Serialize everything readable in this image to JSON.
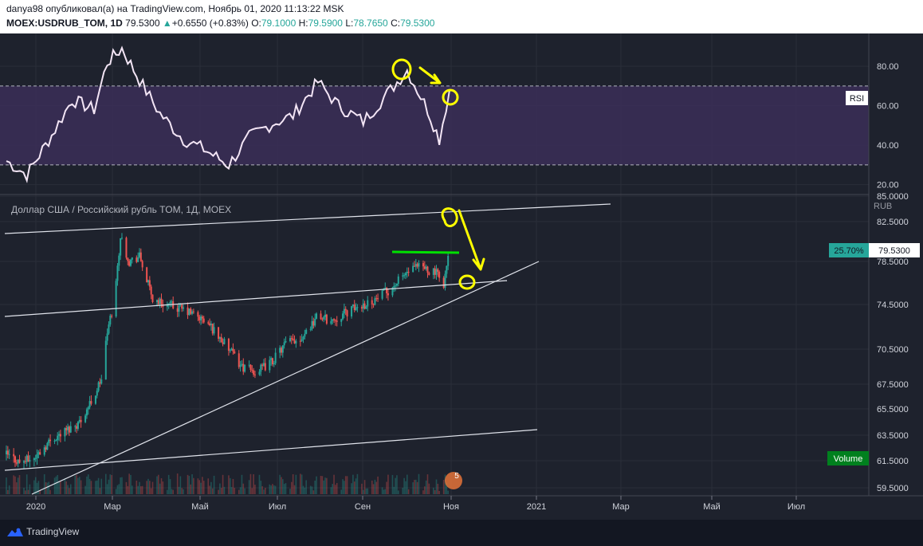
{
  "header": {
    "line1": "danya98 опубликовал(а) на TradingView.com, Ноябрь 01, 2020 11:13:22 MSK",
    "symbol": "MOEX:USDRUB_TOM, 1D",
    "last": "79.5300",
    "change_arrow": "▲",
    "change": "+0.6550 (+0.83%)",
    "o_label": "O:",
    "o": "79.1000",
    "h_label": "H:",
    "h": "79.5900",
    "l_label": "L:",
    "l": "78.7650",
    "c_label": "C:",
    "c": "79.5300"
  },
  "footer": {
    "brand": "TradingView",
    "icon": "tradingview-logo-icon"
  },
  "colors": {
    "up": "#26a69a",
    "down": "#ef5350",
    "rsi_line": "#f3e5f5",
    "rsi_band": "#3b2e58",
    "highlight_yellow": "#ffff00",
    "resistance_green": "#00e000",
    "volume_badge": "#00801e"
  },
  "chart_data": [
    {
      "type": "line",
      "title": "RSI",
      "ylim": [
        15,
        95
      ],
      "yticks": [
        "80.00",
        "60.00",
        "40.00",
        "20.00"
      ],
      "bands": [
        70,
        30
      ],
      "x": [
        "2020-01-01",
        "2020-01-15",
        "2020-02-01",
        "2020-02-15",
        "2020-03-01",
        "2020-03-10",
        "2020-03-20",
        "2020-04-01",
        "2020-04-15",
        "2020-05-01",
        "2020-05-15",
        "2020-06-01",
        "2020-06-15",
        "2020-07-01",
        "2020-07-15",
        "2020-08-01",
        "2020-08-15",
        "2020-09-01",
        "2020-09-15",
        "2020-10-01",
        "2020-10-15",
        "2020-10-23",
        "2020-10-30"
      ],
      "values": [
        32,
        25,
        45,
        63,
        58,
        82,
        89,
        73,
        56,
        43,
        38,
        30,
        44,
        51,
        55,
        72,
        60,
        52,
        64,
        78,
        58,
        43,
        68
      ]
    },
    {
      "type": "candlestick",
      "title": "Доллар США / Российский рубль TOM, 1Д, MOEX",
      "currency": "RUB",
      "ylim": [
        59.0,
        85.0
      ],
      "yticks": [
        "85.0000",
        "82.5000",
        "78.5000",
        "74.5000",
        "70.5000",
        "67.5000",
        "65.5000",
        "63.5000",
        "61.5000",
        "59.5000"
      ],
      "xticks": [
        "2020",
        "Мар",
        "Май",
        "Июл",
        "Сен",
        "Ноя",
        "2021",
        "Мар",
        "Май",
        "Июл"
      ],
      "last_price_label": "79.5300",
      "change_pct_label": "25.70%",
      "volume_label": "Volume",
      "events_badge": "5",
      "closes": [
        {
          "x": "2020-01-01",
          "y": 62.0
        },
        {
          "x": "2020-01-10",
          "y": 61.4
        },
        {
          "x": "2020-01-20",
          "y": 61.7
        },
        {
          "x": "2020-02-01",
          "y": 63.2
        },
        {
          "x": "2020-02-10",
          "y": 63.8
        },
        {
          "x": "2020-02-20",
          "y": 64.5
        },
        {
          "x": "2020-03-01",
          "y": 66.5
        },
        {
          "x": "2020-03-06",
          "y": 68.0
        },
        {
          "x": "2020-03-10",
          "y": 72.0
        },
        {
          "x": "2020-03-15",
          "y": 75.0
        },
        {
          "x": "2020-03-19",
          "y": 81.0
        },
        {
          "x": "2020-03-25",
          "y": 78.5
        },
        {
          "x": "2020-04-01",
          "y": 79.0
        },
        {
          "x": "2020-04-10",
          "y": 75.0
        },
        {
          "x": "2020-04-20",
          "y": 74.5
        },
        {
          "x": "2020-05-01",
          "y": 74.0
        },
        {
          "x": "2020-05-10",
          "y": 73.5
        },
        {
          "x": "2020-05-20",
          "y": 72.5
        },
        {
          "x": "2020-06-01",
          "y": 70.5
        },
        {
          "x": "2020-06-10",
          "y": 69.0
        },
        {
          "x": "2020-06-20",
          "y": 68.5
        },
        {
          "x": "2020-07-01",
          "y": 69.5
        },
        {
          "x": "2020-07-10",
          "y": 71.0
        },
        {
          "x": "2020-07-20",
          "y": 71.5
        },
        {
          "x": "2020-08-01",
          "y": 73.5
        },
        {
          "x": "2020-08-10",
          "y": 73.0
        },
        {
          "x": "2020-08-20",
          "y": 73.8
        },
        {
          "x": "2020-09-01",
          "y": 74.5
        },
        {
          "x": "2020-09-10",
          "y": 75.0
        },
        {
          "x": "2020-09-20",
          "y": 76.0
        },
        {
          "x": "2020-10-01",
          "y": 77.5
        },
        {
          "x": "2020-10-10",
          "y": 78.0
        },
        {
          "x": "2020-10-20",
          "y": 77.5
        },
        {
          "x": "2020-10-26",
          "y": 76.5
        },
        {
          "x": "2020-10-30",
          "y": 79.53
        }
      ]
    }
  ]
}
